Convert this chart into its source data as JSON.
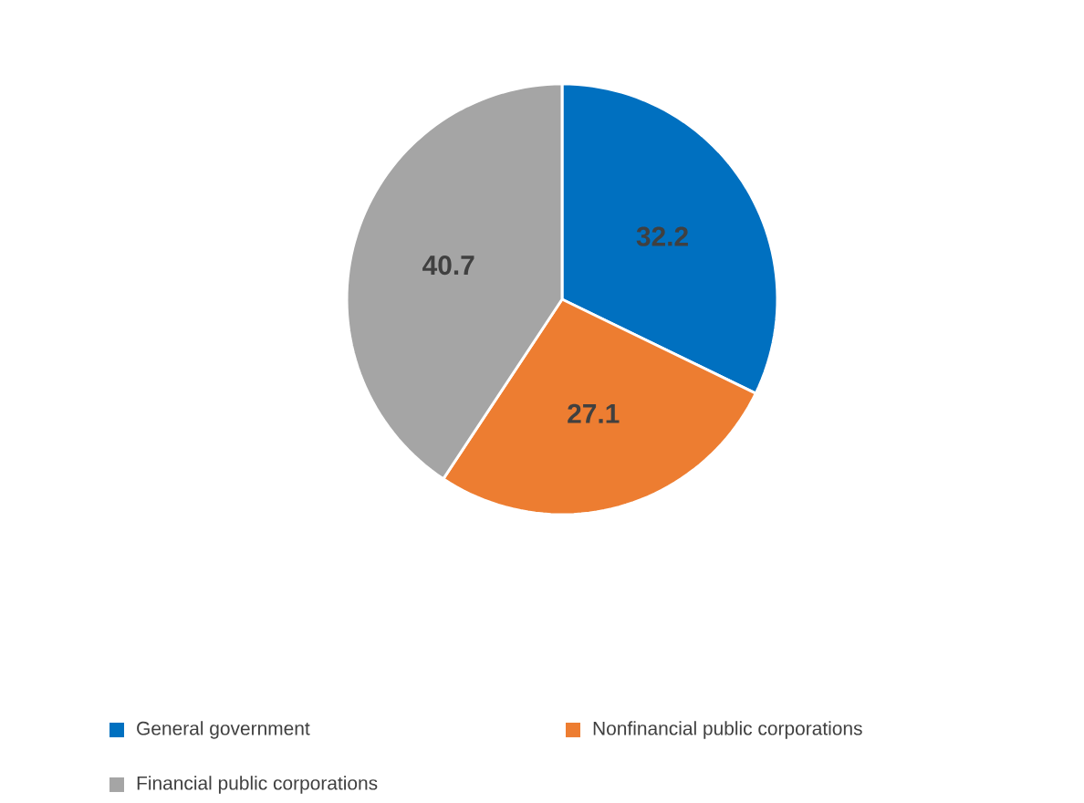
{
  "chart_data": {
    "type": "pie",
    "categories": [
      "General government",
      "Nonfinancial public corporations",
      "Financial public corporations"
    ],
    "values": [
      32.2,
      27.1,
      40.7
    ],
    "colors": [
      "#0070c0",
      "#ed7d31",
      "#a5a5a5"
    ],
    "data_labels": true,
    "legend": "bottom"
  }
}
